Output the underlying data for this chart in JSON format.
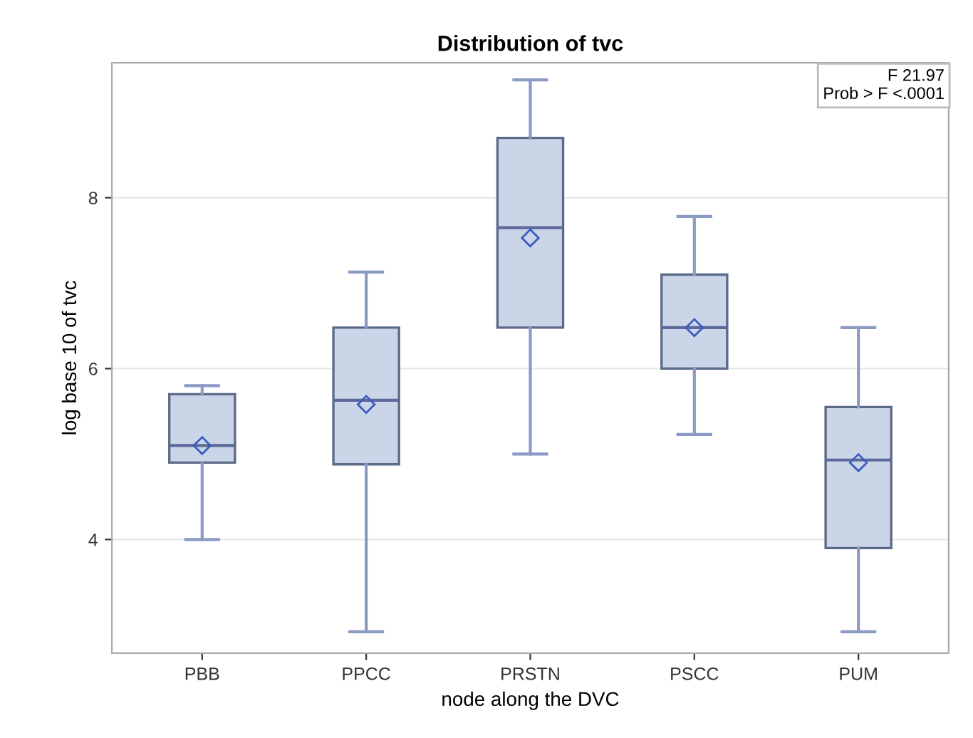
{
  "chart_data": {
    "type": "box",
    "title": "Distribution of tvc",
    "xlabel": "node along the DVC",
    "ylabel": "log base 10 of tvc",
    "categories": [
      "PBB",
      "PPCC",
      "PRSTN",
      "PSCC",
      "PUM"
    ],
    "boxes": [
      {
        "low": 4.0,
        "q1": 4.9,
        "median": 5.1,
        "q3": 5.7,
        "high": 5.8,
        "mean": 5.1
      },
      {
        "low": 2.92,
        "q1": 4.88,
        "median": 5.63,
        "q3": 6.48,
        "high": 7.13,
        "mean": 5.58
      },
      {
        "low": 5.0,
        "q1": 6.48,
        "median": 7.65,
        "q3": 8.7,
        "high": 9.38,
        "mean": 7.53
      },
      {
        "low": 5.23,
        "q1": 6.0,
        "median": 6.48,
        "q3": 7.1,
        "high": 7.78,
        "mean": 6.48
      },
      {
        "low": 2.92,
        "q1": 3.9,
        "median": 4.93,
        "q3": 5.55,
        "high": 6.48,
        "mean": 4.9
      }
    ],
    "color": "#cbd5e8",
    "ylim": [
      2.67,
      9.58
    ],
    "yticks": [
      4,
      6,
      8
    ],
    "grid": "y",
    "marker": "diamond",
    "annotations": [
      "F 21.97",
      "Prob > F <.0001"
    ]
  }
}
